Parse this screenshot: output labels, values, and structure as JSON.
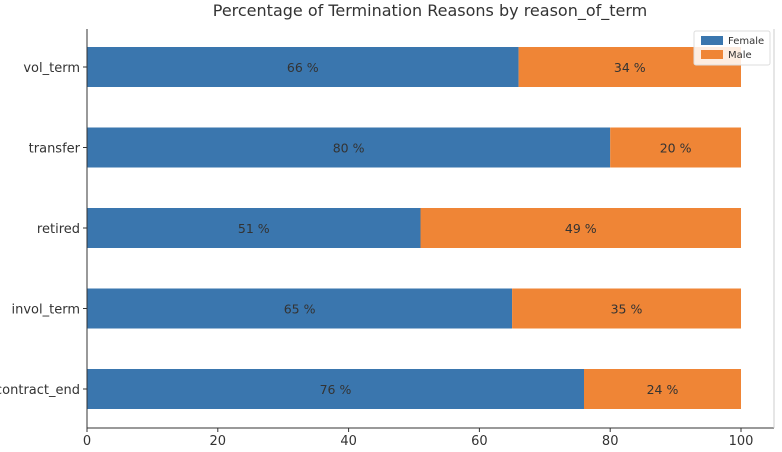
{
  "chart_data": {
    "type": "bar",
    "orientation": "horizontal",
    "stacked": true,
    "title": "Percentage of Termination Reasons by reason_of_term",
    "xlabel": "",
    "ylabel": "",
    "xlim": [
      0,
      100
    ],
    "x_ticks": [
      "0",
      "20",
      "40",
      "60",
      "80",
      "100"
    ],
    "categories": [
      "vol_term",
      "transfer",
      "retired",
      "invol_term",
      "contract_end"
    ],
    "series": [
      {
        "name": "Female",
        "color": "#3a76ae",
        "values": [
          66,
          80,
          51,
          65,
          76
        ],
        "labels": [
          "66 %",
          "80 %",
          "51 %",
          "65 %",
          "76 %"
        ]
      },
      {
        "name": "Male",
        "color": "#ef8536",
        "values": [
          34,
          20,
          49,
          35,
          24
        ],
        "labels": [
          "34 %",
          "20 %",
          "49 %",
          "35 %",
          "24 %"
        ]
      }
    ],
    "legend_position": "top-right",
    "grid": false
  }
}
